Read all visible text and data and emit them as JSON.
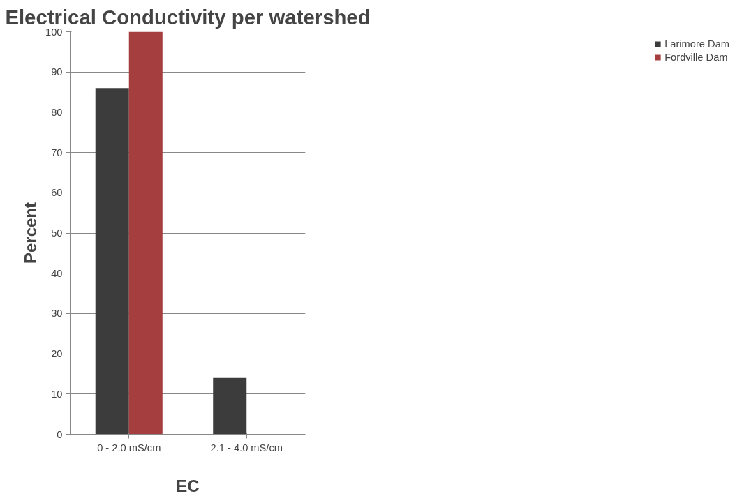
{
  "chart_data": {
    "type": "bar",
    "title": "Electrical Conductivity per watershed",
    "xlabel": "EC",
    "ylabel": "Percent",
    "categories": [
      "0 - 2.0 mS/cm",
      "2.1 - 4.0 mS/cm"
    ],
    "series": [
      {
        "name": "Larimore Dam",
        "color": "#3c3c3c",
        "values": [
          86,
          14
        ]
      },
      {
        "name": "Fordville Dam",
        "color": "#a53e3e",
        "values": [
          100,
          0
        ]
      }
    ],
    "ylim": [
      0,
      100
    ],
    "yticks": [
      0,
      10,
      20,
      30,
      40,
      50,
      60,
      70,
      80,
      90,
      100
    ],
    "grid": "y",
    "legend": "right"
  }
}
